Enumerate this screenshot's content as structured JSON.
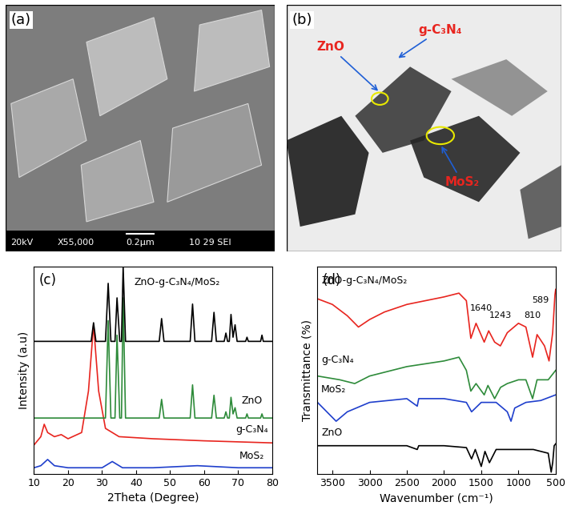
{
  "chart_data": [
    {
      "type": "image",
      "label": "(a)",
      "texts": [
        "20kV",
        "X55,000",
        "0.2μm",
        "10 29 SEI"
      ]
    },
    {
      "type": "image",
      "label": "(b)",
      "annotations": [
        {
          "text": "ZnO",
          "color": "#e8251f"
        },
        {
          "text": "g-C₃N₄",
          "color": "#e8251f"
        },
        {
          "text": "MoS₂",
          "color": "#e8251f"
        }
      ]
    },
    {
      "type": "line",
      "label": "(c)",
      "x_label": "2Theta (Degree)",
      "y_label": "Intensity (a.u)",
      "xlim": [
        10,
        80
      ],
      "xticks": [
        10,
        20,
        30,
        40,
        50,
        60,
        70,
        80
      ],
      "ylim": [
        0,
        100
      ],
      "tick_labels": "x",
      "series": [
        {
          "name": "MoS₂",
          "color": "#1f3fcc",
          "label_pos": [
            74,
            6
          ],
          "x": [
            10,
            12,
            14,
            16,
            20,
            25,
            30,
            33,
            36,
            45,
            58,
            70,
            80
          ],
          "values": [
            3,
            4,
            7,
            4,
            3,
            3,
            3,
            6,
            3,
            3,
            4,
            3,
            3
          ]
        },
        {
          "name": "g-C₃N₄",
          "color": "#e8251f",
          "label_pos": [
            74,
            19
          ],
          "x": [
            10,
            12,
            13,
            14,
            16,
            18,
            20,
            24,
            26,
            27.5,
            29,
            31,
            35,
            45,
            60,
            80
          ],
          "values": [
            14,
            18,
            24,
            20,
            18,
            19,
            17,
            20,
            40,
            72,
            40,
            22,
            18,
            17,
            16,
            15
          ]
        },
        {
          "name": "ZnO",
          "color": "#2e8b3a",
          "label_pos": [
            74,
            33
          ],
          "x": [
            10,
            31,
            31.8,
            32.6,
            33.8,
            34.4,
            35.2,
            35.7,
            36.2,
            36.9,
            46.8,
            47.5,
            48.2,
            55.9,
            56.6,
            57.3,
            62.2,
            62.9,
            63.6,
            65.9,
            66.4,
            66.9,
            67.4,
            67.9,
            68.5,
            69.1,
            69.7,
            72.2,
            72.6,
            73.0,
            76.6,
            77.0,
            77.4,
            80
          ],
          "values": [
            27,
            27,
            74,
            27,
            27,
            67,
            27,
            27,
            85,
            27,
            27,
            36,
            27,
            27,
            43,
            27,
            27,
            38,
            27,
            27,
            30,
            27,
            27,
            37,
            29,
            32,
            27,
            27,
            29,
            27,
            27,
            29,
            27,
            27
          ]
        },
        {
          "name": "ZnO-g-C₃N₄/MoS₂",
          "color": "#000000",
          "label_pos": [
            52,
            90
          ],
          "x": [
            10,
            26.8,
            27.5,
            28.2,
            31,
            31.8,
            32.6,
            33.8,
            34.4,
            35.2,
            35.7,
            36.2,
            36.9,
            46.8,
            47.5,
            48.2,
            55.9,
            56.6,
            57.3,
            62.2,
            62.9,
            63.6,
            65.9,
            66.4,
            66.9,
            67.4,
            67.9,
            68.5,
            69.1,
            69.7,
            72.2,
            72.6,
            73.0,
            76.6,
            77.0,
            77.4,
            80
          ],
          "values": [
            64,
            64,
            73,
            64,
            64,
            92,
            64,
            64,
            85,
            64,
            64,
            100,
            64,
            64,
            75,
            64,
            64,
            82,
            64,
            64,
            78,
            64,
            64,
            68,
            64,
            64,
            77,
            66,
            72,
            64,
            64,
            66,
            64,
            64,
            67,
            64,
            64
          ]
        }
      ]
    },
    {
      "type": "line",
      "label": "(d)",
      "x_label": "Wavenumber (cm⁻¹)",
      "y_label": "Transmittance (%)",
      "xlim": [
        3700,
        500
      ],
      "xticks": [
        3500,
        3000,
        2500,
        2000,
        1500,
        1000,
        500
      ],
      "ylim": [
        0,
        110
      ],
      "tick_labels": "x",
      "series": [
        {
          "name": "ZnO",
          "color": "#000000",
          "label_pos": [
            3650,
            19
          ],
          "x": [
            3700,
            3500,
            3000,
            2500,
            2360,
            2340,
            2000,
            1700,
            1630,
            1580,
            1500,
            1450,
            1390,
            1300,
            1000,
            800,
            600,
            560,
            540,
            520,
            500
          ],
          "values": [
            15,
            15,
            15,
            15,
            13,
            15,
            15,
            14,
            8,
            13,
            4,
            12,
            6,
            13,
            13,
            13,
            11,
            1,
            6,
            15,
            16
          ]
        },
        {
          "name": "MoS₂",
          "color": "#1f3fcc",
          "label_pos": [
            3650,
            42
          ],
          "x": [
            3700,
            3600,
            3450,
            3300,
            3000,
            2500,
            2360,
            2340,
            2000,
            1700,
            1630,
            1500,
            1300,
            1150,
            1100,
            1050,
            900,
            700,
            500
          ],
          "values": [
            38,
            34,
            28,
            33,
            38,
            40,
            36,
            40,
            40,
            38,
            33,
            38,
            38,
            33,
            28,
            35,
            38,
            39,
            42
          ]
        },
        {
          "name": "g-C₃N₄",
          "color": "#2e8b3a",
          "label_pos": [
            3650,
            58
          ],
          "x": [
            3700,
            3400,
            3200,
            3000,
            2500,
            2000,
            1800,
            1700,
            1640,
            1570,
            1460,
            1410,
            1320,
            1240,
            1150,
            1000,
            900,
            810,
            750,
            600,
            500
          ],
          "values": [
            52,
            50,
            48,
            52,
            57,
            60,
            62,
            55,
            44,
            48,
            42,
            47,
            40,
            46,
            48,
            50,
            50,
            40,
            50,
            50,
            55
          ]
        },
        {
          "name": "ZnO-g-C₃N₄/MoS₂",
          "color": "#e8251f",
          "label_pos": [
            3650,
            100
          ],
          "x": [
            3700,
            3500,
            3300,
            3150,
            3000,
            2800,
            2500,
            2000,
            1800,
            1700,
            1640,
            1570,
            1460,
            1400,
            1320,
            1243,
            1150,
            1000,
            900,
            810,
            750,
            650,
            589,
            540,
            510,
            500
          ],
          "values": [
            93,
            90,
            84,
            78,
            82,
            86,
            90,
            94,
            96,
            92,
            72,
            80,
            70,
            76,
            70,
            68,
            75,
            80,
            78,
            62,
            74,
            68,
            60,
            75,
            95,
            98
          ]
        }
      ],
      "annotations": [
        {
          "text": "1640",
          "x": 1500,
          "y": 86
        },
        {
          "text": "1243",
          "x": 1243,
          "y": 82
        },
        {
          "text": "810",
          "x": 810,
          "y": 82
        },
        {
          "text": "589",
          "x": 700,
          "y": 90
        }
      ]
    }
  ]
}
